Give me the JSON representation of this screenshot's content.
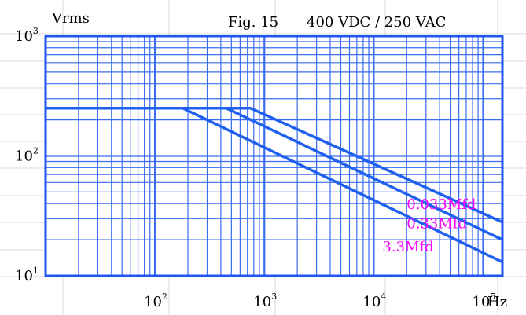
{
  "header": {
    "ylabel_text": "Vrms",
    "figure_label": "Fig. 15",
    "rating": "400 VDC / 250 VAC"
  },
  "chart_data": {
    "type": "line",
    "title": "400 VDC / 250 VAC",
    "xlabel": "Hz",
    "ylabel": "Vrms",
    "x_scale": "log",
    "y_scale": "log",
    "xlim": [
      10,
      150000
    ],
    "ylim": [
      10,
      1000
    ],
    "grid": true,
    "x_ticks": [
      {
        "value": 100,
        "base": "10",
        "exp": "2"
      },
      {
        "value": 1000,
        "base": "10",
        "exp": "3"
      },
      {
        "value": 10000,
        "base": "10",
        "exp": "4"
      },
      {
        "value": 100000,
        "base": "10",
        "exp": "5"
      }
    ],
    "y_ticks": [
      {
        "value": 10,
        "base": "10",
        "exp": "1"
      },
      {
        "value": 100,
        "base": "10",
        "exp": "2"
      },
      {
        "value": 1000,
        "base": "10",
        "exp": "3"
      }
    ],
    "series": [
      {
        "name": "0.033Mfd",
        "x": [
          10,
          750,
          150000
        ],
        "y": [
          250,
          250,
          28
        ]
      },
      {
        "name": "0.33Mfd",
        "x": [
          10,
          450,
          150000
        ],
        "y": [
          250,
          250,
          20
        ]
      },
      {
        "name": "3.3Mfd",
        "x": [
          10,
          180,
          150000
        ],
        "y": [
          250,
          250,
          13
        ]
      }
    ]
  },
  "colors": {
    "grid": "#3a6cf2",
    "border": "#1f55f0",
    "curve": "#2060f0",
    "curve_label": "#ff00ff",
    "page_grid": "#d8d8d8"
  }
}
